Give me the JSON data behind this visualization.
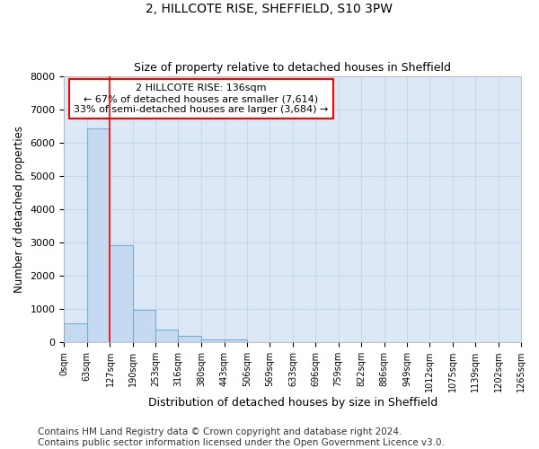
{
  "title_line1": "2, HILLCOTE RISE, SHEFFIELD, S10 3PW",
  "title_line2": "Size of property relative to detached houses in Sheffield",
  "xlabel": "Distribution of detached houses by size in Sheffield",
  "ylabel": "Number of detached properties",
  "bin_edges": [
    0,
    63,
    127,
    190,
    253,
    316,
    380,
    443,
    506,
    569,
    633,
    696,
    759,
    822,
    886,
    949,
    1012,
    1075,
    1139,
    1202,
    1265
  ],
  "bar_heights": [
    560,
    6430,
    2920,
    970,
    380,
    190,
    95,
    80,
    0,
    0,
    0,
    0,
    0,
    0,
    0,
    0,
    0,
    0,
    0,
    0
  ],
  "bar_color": "#c5d9f0",
  "bar_edge_color": "#7aafd4",
  "bar_edge_width": 0.8,
  "grid_color": "#c8d8ea",
  "background_color": "#dce8f5",
  "property_line_x": 127,
  "property_line_color": "red",
  "annotation_text_line1": "2 HILLCOTE RISE: 136sqm",
  "annotation_text_line2": "← 67% of detached houses are smaller (7,614)",
  "annotation_text_line3": "33% of semi-detached houses are larger (3,684) →",
  "ylim": [
    0,
    8000
  ],
  "yticks": [
    0,
    1000,
    2000,
    3000,
    4000,
    5000,
    6000,
    7000,
    8000
  ],
  "footer_line1": "Contains HM Land Registry data © Crown copyright and database right 2024.",
  "footer_line2": "Contains public sector information licensed under the Open Government Licence v3.0.",
  "footer_fontsize": 7.5,
  "title_fontsize": 10,
  "subtitle_fontsize": 9,
  "xlabel_fontsize": 9,
  "ylabel_fontsize": 8.5,
  "ytick_fontsize": 8,
  "xtick_fontsize": 7
}
